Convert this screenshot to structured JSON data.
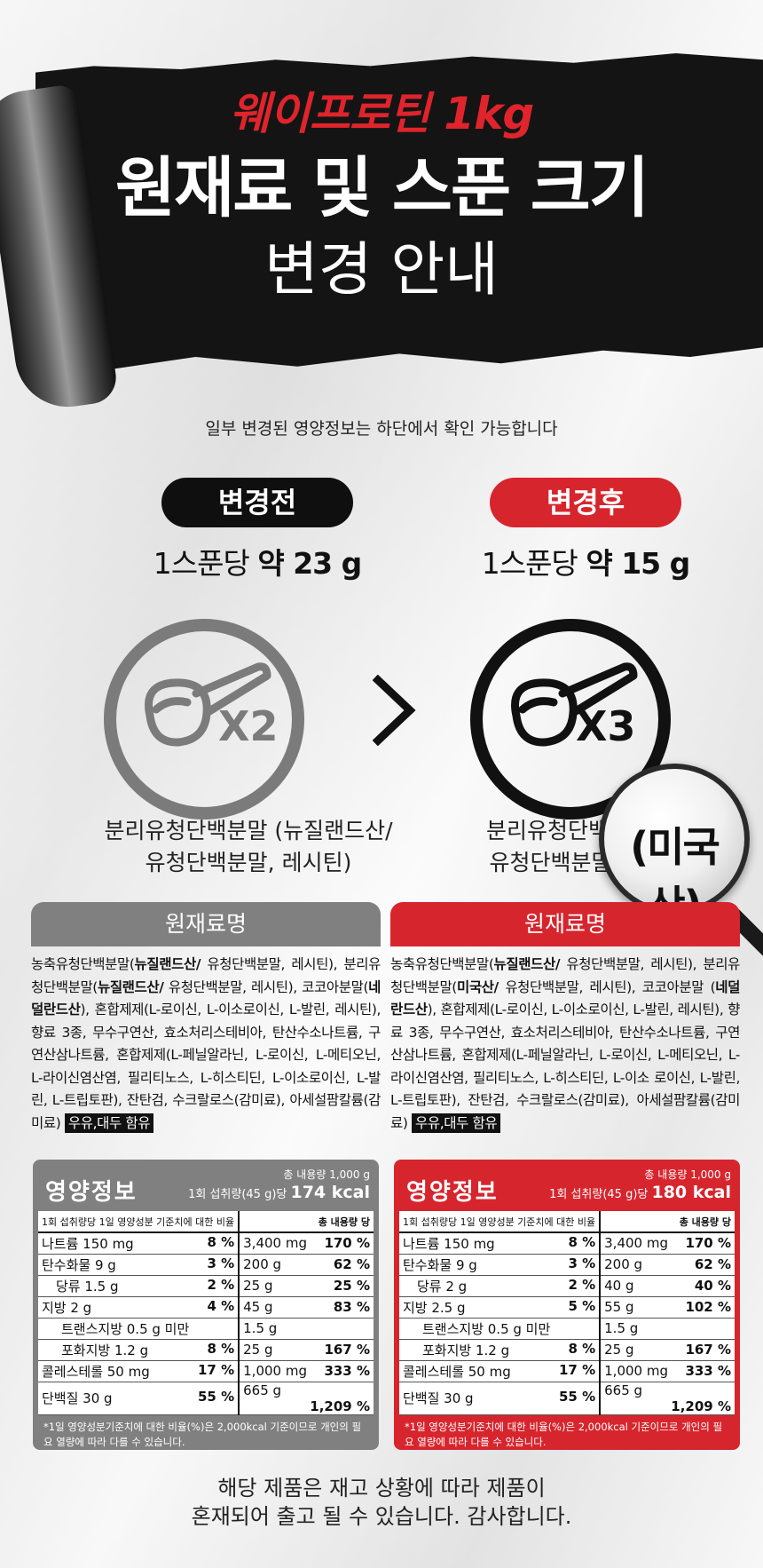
{
  "banner": {
    "line1": "웨이프로틴 1kg",
    "line2": "원재료 및 스푼 크기",
    "line3": "변경 안내",
    "accent": "#e0242c"
  },
  "subtitle": "일부 변경된 영양정보는 하단에서 확인 가능합니다",
  "before": {
    "pill": "변경전",
    "scoop_prefix": "1스푼당 ",
    "scoop_value": "약 23 g",
    "multiplier": "X2",
    "desc_line1": "분리유청단백분말 (뉴질랜드산/",
    "desc_line2": "유청단백분말, 레시틴)",
    "ing_header": "원재료명",
    "ing_parts": [
      {
        "t": "농축유청단백분말(",
        "b": false
      },
      {
        "t": "뉴질랜드산/",
        "b": true
      },
      {
        "t": " 유청단백분말, 레시틴), 분리유청단백분말(",
        "b": false
      },
      {
        "t": "뉴질랜드산/",
        "b": true
      },
      {
        "t": " 유청단백분말, 레시틴), 코코아분말(",
        "b": false
      },
      {
        "t": "네덜란드산",
        "b": true
      },
      {
        "t": "), 혼합제제(L-로이신, L-이소로이신, L-발린, 레시틴), 향료 3종, 무수구연산, 효소처리스테비아, 탄산수소나트륨, 구연산삼나트륨, 혼합제제(L-페닐알라닌, L-로이신, L-메티오닌, L-라이신염산염, 필리티노스, L-히스티딘, L-이소로이신, L-발린, L-트립토판), 잔탄검, 수크랄로스(감미료), 아세설팜칼륨(감미료) ",
        "b": false
      }
    ],
    "ing_tag": "우유,대두 함유",
    "nutrition": {
      "title": "영양정보",
      "total": "총 내용량 1,000 g",
      "serving_prefix": "1회 섭취량(45 g)당 ",
      "kcal": "174 kcal",
      "hdr_left": "1회 섭취량당   1일 영양성분 기준치에 대한 비율",
      "hdr_right": "총 내용량 당",
      "rows": [
        {
          "name": "나트륨 150 mg",
          "pct": "8 %",
          "total": "3,400 mg",
          "tpct": "170 %",
          "indent": 0
        },
        {
          "name": "탄수화물 9 g",
          "pct": "3 %",
          "total": "200 g",
          "tpct": "62 %",
          "indent": 0
        },
        {
          "name": "당류 1.5 g",
          "pct": "2 %",
          "total": "25 g",
          "tpct": "25 %",
          "indent": 1
        },
        {
          "name": "지방 2 g",
          "pct": "4 %",
          "total": "45 g",
          "tpct": "83 %",
          "indent": 0
        },
        {
          "name": "트랜스지방 0.5 g 미만",
          "pct": "",
          "total": "1.5 g",
          "tpct": "",
          "indent": 2
        },
        {
          "name": "포화지방 1.2 g",
          "pct": "8 %",
          "total": "25 g",
          "tpct": "167 %",
          "indent": 2
        },
        {
          "name": "콜레스테롤 50 mg",
          "pct": "17 %",
          "total": "1,000 mg",
          "tpct": "333 %",
          "indent": 0
        },
        {
          "name": "단백질 30 g",
          "pct": "55 %",
          "total": "665 g",
          "tpct": "1,209 %",
          "indent": 0
        }
      ],
      "note": "*1일 영양성분기준치에 대한 비율(%)은 2,000kcal 기준이므로 개인의 필요 열량에 따라 다를 수 있습니다."
    }
  },
  "after": {
    "pill": "변경후",
    "scoop_prefix": "1스푼당 ",
    "scoop_value": "약 15 g",
    "multiplier": "X3",
    "desc_line1": "분리유청단백분말",
    "desc_line2": "유청단백분말, 레",
    "magnifier_text": "(미국산)",
    "ing_header": "원재료명",
    "ing_parts": [
      {
        "t": "농축유청단백분말(",
        "b": false
      },
      {
        "t": "뉴질랜드산/",
        "b": true
      },
      {
        "t": " 유청단백분말, 레시틴), 분리유청단백분말(",
        "b": false
      },
      {
        "t": "미국산/",
        "b": true
      },
      {
        "t": " 유청단백분말, 레시틴), 코코아분말 (",
        "b": false
      },
      {
        "t": "네덜란드산",
        "b": true
      },
      {
        "t": "), 혼합제제(L-로이신, L-이소로이신, L-발린, 레시틴), 향료 3종, 무수구연산, 효소처리스테비아, 탄산수소나트륨, 구연산삼나트륨, 혼합제제(L-페닐알라닌, L-로이신, L-메티오닌, L-라이신염산염, 필리티노스, L-히스티딘, L-이소 로이신, L-발린, L-트립토판), 잔탄검, 수크랄로스(감미료), 아세설팜칼륨(감미료) ",
        "b": false
      }
    ],
    "ing_tag": "우유,대두 함유",
    "nutrition": {
      "title": "영양정보",
      "total": "총 내용량 1,000 g",
      "serving_prefix": "1회 섭취량(45 g)당 ",
      "kcal": "180 kcal",
      "hdr_left": "1회 섭취량당   1일 영양성분 기준치에 대한 비율",
      "hdr_right": "총 내용량 당",
      "rows": [
        {
          "name": "나트륨 150 mg",
          "pct": "8 %",
          "total": "3,400 mg",
          "tpct": "170 %",
          "indent": 0
        },
        {
          "name": "탄수화물 9 g",
          "pct": "3 %",
          "total": "200 g",
          "tpct": "62 %",
          "indent": 0
        },
        {
          "name": "당류 2 g",
          "pct": "2 %",
          "total": "40 g",
          "tpct": "40 %",
          "indent": 1
        },
        {
          "name": "지방 2.5 g",
          "pct": "5 %",
          "total": "55 g",
          "tpct": "102 %",
          "indent": 0
        },
        {
          "name": "트랜스지방 0.5 g 미만",
          "pct": "",
          "total": "1.5 g",
          "tpct": "",
          "indent": 2
        },
        {
          "name": "포화지방 1.2 g",
          "pct": "8 %",
          "total": "25 g",
          "tpct": "167 %",
          "indent": 2
        },
        {
          "name": "콜레스테롤 50 mg",
          "pct": "17 %",
          "total": "1,000 mg",
          "tpct": "333 %",
          "indent": 0
        },
        {
          "name": "단백질 30 g",
          "pct": "55 %",
          "total": "665 g",
          "tpct": "1,209 %",
          "indent": 0
        }
      ],
      "note": "*1일 영양성분기준치에 대한 비율(%)은 2,000kcal 기준이므로 개인의 필요 열량에 따라 다를 수 있습니다."
    }
  },
  "footer": {
    "line1": "해당 제품은 재고 상황에 따라 제품이",
    "line2": "혼재되어 출고 될 수 있습니다. 감사합니다."
  }
}
